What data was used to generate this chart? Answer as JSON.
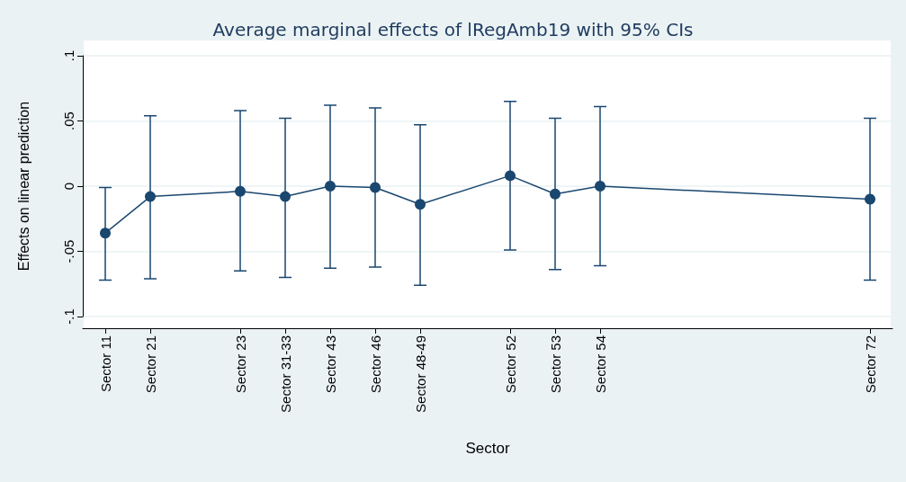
{
  "chart_data": {
    "type": "line",
    "title": "Average marginal effects of lRegAmb19 with 95% CIs",
    "xlabel": "Sector",
    "ylabel": "Effects on linear prediction",
    "categories": [
      "Sector 11",
      "Sector 21",
      null,
      "Sector 23",
      "Sector 31-33",
      "Sector 43",
      "Sector 46",
      "Sector 48-49",
      null,
      "Sector 52",
      "Sector 53",
      "Sector 54",
      null,
      null,
      null,
      null,
      null,
      "Sector 72"
    ],
    "series": [
      {
        "color": "#1a476f",
        "values": [
          -0.036,
          -0.008,
          null,
          -0.004,
          -0.008,
          0.0,
          -0.001,
          -0.014,
          null,
          0.008,
          -0.006,
          0.0,
          null,
          null,
          null,
          null,
          null,
          -0.01
        ],
        "errors": [
          [
            -0.072,
            -0.001
          ],
          [
            -0.071,
            0.054
          ],
          null,
          [
            -0.065,
            0.058
          ],
          [
            -0.07,
            0.052
          ],
          [
            -0.063,
            0.062
          ],
          [
            -0.062,
            0.06
          ],
          [
            -0.076,
            0.047
          ],
          null,
          [
            -0.049,
            0.065
          ],
          [
            -0.064,
            0.052
          ],
          [
            -0.061,
            0.061
          ],
          null,
          null,
          null,
          null,
          null,
          [
            -0.072,
            0.052
          ]
        ]
      }
    ],
    "ylim": [
      -0.1,
      0.1
    ],
    "yticks": [
      {
        "value": -0.1,
        "label": "-.1"
      },
      {
        "value": -0.05,
        "label": "-.05"
      },
      0,
      {
        "value": 0.05,
        "label": ".05"
      },
      {
        "value": 0.1,
        "label": ".1"
      }
    ],
    "grid": "y",
    "marker": "circle",
    "line_style": "solid"
  }
}
